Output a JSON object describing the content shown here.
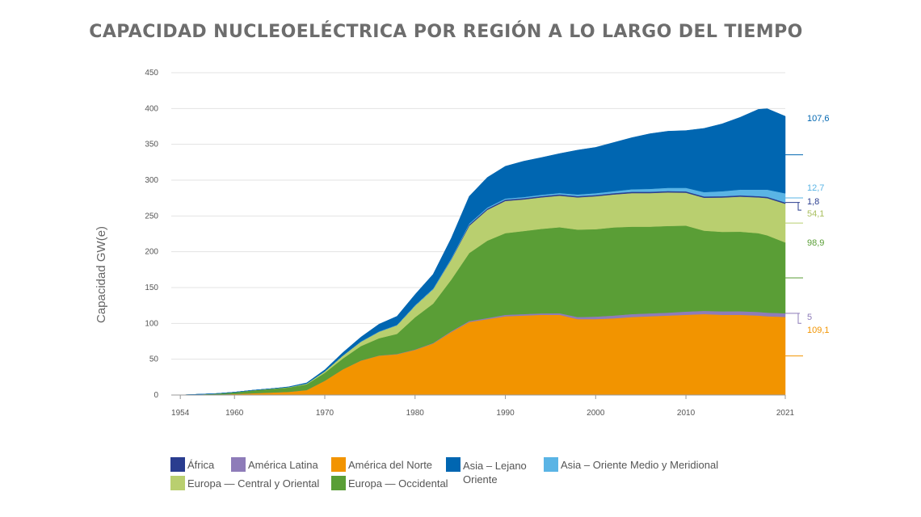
{
  "chart_data": {
    "type": "area",
    "stacked": true,
    "title": "CAPACIDAD NUCLEOELÉCTRICA POR REGIÓN A LO LARGO DEL TIEMPO",
    "xlabel": "",
    "ylabel": "Capacidad GW(e)",
    "xlim": [
      1953,
      2021
    ],
    "ylim": [
      0,
      450
    ],
    "yticks": [
      0,
      50,
      100,
      150,
      200,
      250,
      300,
      350,
      400,
      450
    ],
    "xticks": [
      1954,
      1960,
      1970,
      1980,
      1990,
      2000,
      2010,
      2021
    ],
    "grid": true,
    "legend_position": "bottom",
    "x": [
      1954,
      1956,
      1958,
      1960,
      1962,
      1964,
      1966,
      1968,
      1970,
      1972,
      1974,
      1976,
      1978,
      1980,
      1982,
      1984,
      1986,
      1988,
      1990,
      1992,
      1994,
      1996,
      1998,
      2000,
      2002,
      2004,
      2006,
      2008,
      2010,
      2012,
      2014,
      2016,
      2018,
      2019,
      2021
    ],
    "series": [
      {
        "name": "América del Norte",
        "color": "#f29400",
        "label": "109,1",
        "values": [
          0,
          0.3,
          0.7,
          1.5,
          2.5,
          3.5,
          4.5,
          7,
          20,
          36,
          48,
          55,
          57,
          63,
          72,
          88,
          102,
          106,
          110,
          111,
          112,
          112,
          106,
          106,
          107,
          109,
          110,
          111,
          112,
          113,
          112,
          112,
          111,
          110,
          109.1
        ]
      },
      {
        "name": "América Latina",
        "color": "#8e7cb9",
        "label": "5",
        "values": [
          0,
          0,
          0,
          0,
          0,
          0,
          0,
          0,
          0,
          0,
          0.3,
          0.3,
          0.4,
          0.6,
          0.6,
          1,
          1.3,
          1.5,
          2,
          2,
          2,
          2.3,
          3,
          3.5,
          4,
          4,
          4,
          4,
          4.5,
          4.5,
          4.8,
          5,
          5,
          5,
          5
        ]
      },
      {
        "name": "Europa — Occidental",
        "color": "#5a9e36",
        "label": "98,9",
        "values": [
          0,
          0.7,
          1.3,
          2.5,
          4,
          5,
          6,
          8,
          11,
          15,
          20,
          24,
          28,
          45,
          55,
          72,
          95,
          108,
          114,
          116,
          118,
          120,
          122,
          122,
          123,
          122,
          121,
          121,
          120,
          112,
          111,
          111,
          110,
          108,
          98.9
        ]
      },
      {
        "name": "Europa — Central y Oriental",
        "color": "#b9cf6f",
        "label": "54,1",
        "values": [
          0,
          0,
          0,
          0,
          0.1,
          0.3,
          0.5,
          1,
          2,
          4,
          6,
          9,
          12,
          16,
          20,
          28,
          38,
          43,
          45,
          44,
          44,
          44,
          45,
          46,
          46,
          47,
          47,
          47,
          46,
          46,
          48,
          49,
          50,
          52,
          54.1
        ]
      },
      {
        "name": "África",
        "color": "#2a3d8f",
        "label": "1,8",
        "values": [
          0,
          0,
          0,
          0,
          0,
          0,
          0,
          0,
          0,
          0,
          0,
          0,
          0,
          0,
          0,
          0.6,
          1.8,
          1.8,
          1.8,
          1.8,
          1.8,
          1.8,
          1.8,
          1.8,
          1.8,
          1.8,
          1.8,
          1.8,
          1.8,
          1.8,
          1.8,
          1.8,
          1.8,
          1.8,
          1.8
        ]
      },
      {
        "name": "Asia – Oriente Medio y Meridional",
        "color": "#5ab4e5",
        "label": "12,7",
        "values": [
          0,
          0,
          0,
          0,
          0,
          0,
          0,
          0,
          0.2,
          0.3,
          0.6,
          0.6,
          0.6,
          0.8,
          1,
          1.2,
          1.3,
          1.5,
          1.6,
          1.6,
          1.8,
          2,
          2.2,
          2.5,
          2.7,
          3.5,
          4,
          4.5,
          5,
          6,
          7,
          8,
          9,
          10,
          12.7
        ]
      },
      {
        "name": "Asia – Lejano Oriente",
        "color": "#0066b1",
        "label": "107,6",
        "values": [
          0,
          0,
          0,
          0,
          0,
          0,
          0.5,
          1,
          2,
          4,
          6,
          10,
          12,
          15,
          20,
          28,
          38,
          42,
          45,
          50,
          52,
          55,
          62,
          64,
          68,
          72,
          77,
          79,
          80,
          89,
          94,
          101,
          112,
          113,
          107.6
        ]
      }
    ]
  },
  "legend": [
    {
      "label": "África",
      "color": "#2a3d8f"
    },
    {
      "label": "América Latina",
      "color": "#8e7cb9"
    },
    {
      "label": "América del Norte",
      "color": "#f29400"
    },
    {
      "label": "Asia – Lejano Oriente",
      "color": "#0066b1"
    },
    {
      "label": "Asia – Oriente Medio y Meridional",
      "color": "#5ab4e5"
    },
    {
      "label": "Europa — Central y Oriental",
      "color": "#b9cf6f"
    },
    {
      "label": "Europa — Occidental",
      "color": "#5a9e36"
    }
  ]
}
